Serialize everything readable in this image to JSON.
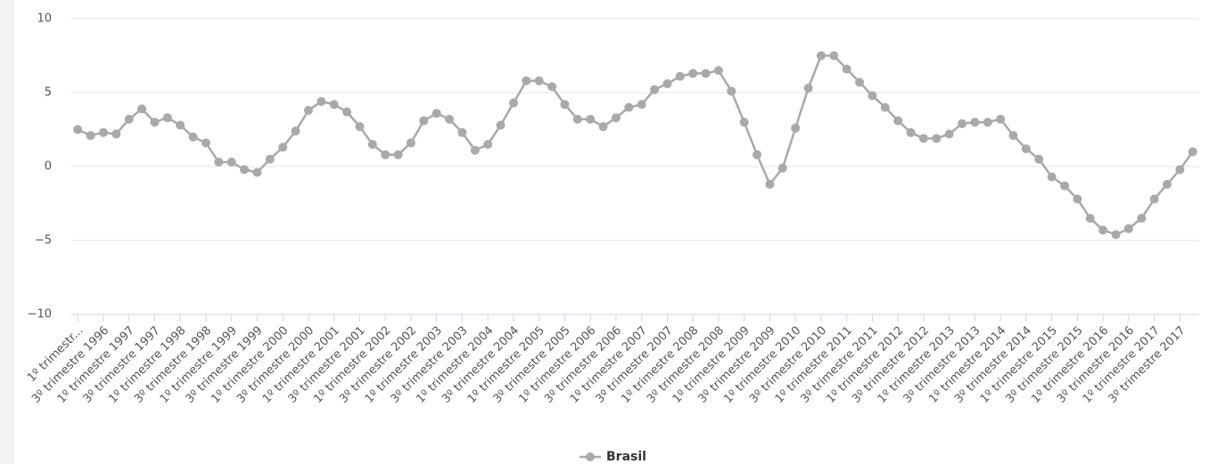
{
  "chart_data": {
    "type": "line",
    "categories": [
      "1º trimestr...",
      null,
      "3º trimestre 1996",
      null,
      "1º trimestre 1997",
      null,
      "3º trimestre 1997",
      null,
      "1º trimestre 1998",
      null,
      "3º trimestre 1998",
      null,
      "1º trimestre 1999",
      null,
      "3º trimestre 1999",
      null,
      "1º trimestre 2000",
      null,
      "3º trimestre 2000",
      null,
      "1º trimestre 2001",
      null,
      "3º trimestre 2001",
      null,
      "1º trimestre 2002",
      null,
      "3º trimestre 2002",
      null,
      "1º trimestre 2003",
      null,
      "3º trimestre 2003",
      null,
      "1º trimestre 2004",
      null,
      "3º trimestre 2004",
      null,
      "1º trimestre 2005",
      null,
      "3º trimestre 2005",
      null,
      "1º trimestre 2006",
      null,
      "3º trimestre 2006",
      null,
      "1º trimestre 2007",
      null,
      "3º trimestre 2007",
      null,
      "1º trimestre 2008",
      null,
      "3º trimestre 2008",
      null,
      "1º trimestre 2009",
      null,
      "3º trimestre 2009",
      null,
      "1º trimestre 2010",
      null,
      "3º trimestre 2010",
      null,
      "1º trimestre 2011",
      null,
      "3º trimestre 2011",
      null,
      "1º trimestre 2012",
      null,
      "3º trimestre 2012",
      null,
      "1º trimestre 2013",
      null,
      "3º trimestre 2013",
      null,
      "1º trimestre 2014",
      null,
      "3º trimestre 2014",
      null,
      "1º trimestre 2015",
      null,
      "3º trimestre 2015",
      null,
      "1º trimestre 2016",
      null,
      "3º trimestre 2016",
      null,
      "1º trimestre 2017",
      null,
      "3º trimestre 2017",
      null
    ],
    "series": [
      {
        "name": "Brasil",
        "color": "#a9a9a9",
        "values": [
          2.5,
          2.1,
          2.3,
          2.2,
          3.2,
          3.9,
          3.0,
          3.3,
          2.8,
          2.0,
          1.6,
          0.3,
          0.3,
          -0.2,
          -0.4,
          0.5,
          1.3,
          2.4,
          3.8,
          4.4,
          4.2,
          3.7,
          2.7,
          1.5,
          0.8,
          0.8,
          1.6,
          3.1,
          3.6,
          3.2,
          2.3,
          1.1,
          1.5,
          2.8,
          4.3,
          5.8,
          5.8,
          5.4,
          4.2,
          3.2,
          3.2,
          2.7,
          3.3,
          4.0,
          4.2,
          5.2,
          5.6,
          6.1,
          6.3,
          6.3,
          6.5,
          5.1,
          3.0,
          0.8,
          -1.2,
          -0.1,
          2.6,
          5.3,
          7.5,
          7.5,
          6.6,
          5.7,
          4.8,
          4.0,
          3.1,
          2.3,
          1.9,
          1.9,
          2.2,
          2.9,
          3.0,
          3.0,
          3.2,
          2.1,
          1.2,
          0.5,
          -0.7,
          -1.3,
          -2.2,
          -3.5,
          -4.3,
          -4.6,
          -4.2,
          -3.5,
          -2.2,
          -1.2,
          -0.2,
          1.0
        ]
      }
    ],
    "ylim": [
      -10,
      10
    ],
    "yticks": [
      10,
      5,
      0,
      {
        "value": -5,
        "label": "−5"
      },
      {
        "value": -10,
        "label": "−10"
      }
    ],
    "grid": true
  }
}
